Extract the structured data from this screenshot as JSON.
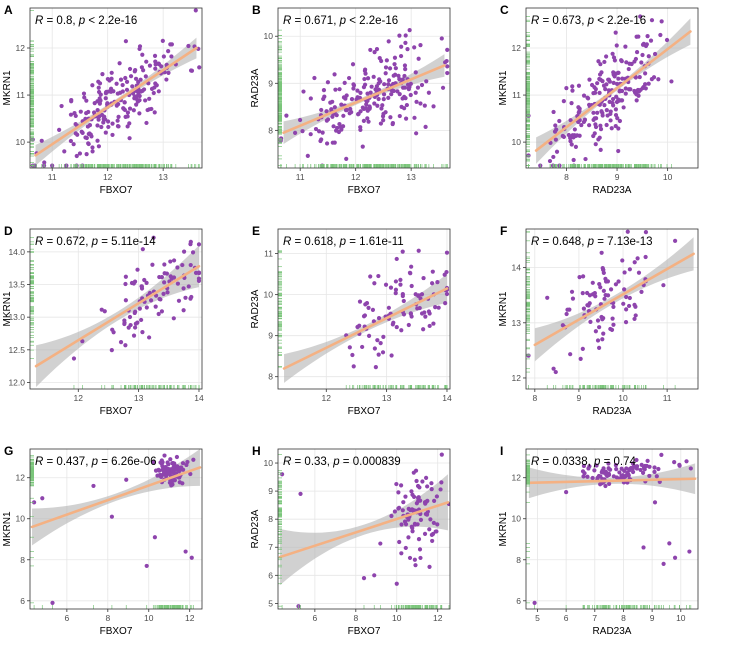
{
  "colors": {
    "point": "#8E44AD",
    "fit": "#F4B183",
    "band": "#B3B3B3",
    "rug": "#7BC67B",
    "grid": "#E6E6E6",
    "frame": "#333333"
  },
  "chart_data": [
    {
      "panel": "A",
      "type": "scatter",
      "xlabel": "FBXO7",
      "ylabel": "MKRN1",
      "stat_r": "0.8",
      "stat_p": "< 2.2e-16",
      "xlim": [
        10.6,
        13.7
      ],
      "ylim": [
        9.45,
        12.85
      ],
      "xticks": [
        11,
        12,
        13
      ],
      "yticks": [
        10,
        11,
        12
      ],
      "fit": {
        "x0": 10.7,
        "y0": 9.72,
        "x1": 13.6,
        "y1": 12.0,
        "band_end": 0.22,
        "band_mid": 0.05
      },
      "seed": 11,
      "n": 220,
      "spread": 0.42,
      "xdist": "normal",
      "xmean": 12.2,
      "xsd": 0.6
    },
    {
      "panel": "B",
      "type": "scatter",
      "xlabel": "FBXO7",
      "ylabel": "RAD23A",
      "stat_r": "0.671",
      "stat_p": "< 2.2e-16",
      "xlim": [
        10.6,
        13.7
      ],
      "ylim": [
        7.2,
        10.6
      ],
      "xticks": [
        11,
        12,
        13
      ],
      "yticks": [
        8,
        9,
        10
      ],
      "fit": {
        "x0": 10.7,
        "y0": 7.95,
        "x1": 13.6,
        "y1": 9.38,
        "band_end": 0.24,
        "band_mid": 0.05
      },
      "seed": 22,
      "n": 220,
      "spread": 0.42,
      "xdist": "normal",
      "xmean": 12.3,
      "xsd": 0.6
    },
    {
      "panel": "C",
      "type": "scatter",
      "xlabel": "RAD23A",
      "ylabel": "MKRN1",
      "stat_r": "0.673",
      "stat_p": "< 2.2e-16",
      "xlim": [
        7.2,
        10.6
      ],
      "ylim": [
        9.45,
        12.85
      ],
      "xticks": [
        8,
        9,
        10
      ],
      "yticks": [
        10,
        11,
        12
      ],
      "fit": {
        "x0": 7.4,
        "y0": 9.82,
        "x1": 10.45,
        "y1": 12.35,
        "band_end": 0.28,
        "band_mid": 0.05
      },
      "seed": 33,
      "n": 220,
      "spread": 0.44,
      "xdist": "normal",
      "xmean": 8.8,
      "xsd": 0.55
    },
    {
      "panel": "D",
      "type": "scatter",
      "xlabel": "FBXO7",
      "ylabel": "MKRN1",
      "stat_r": "0.672",
      "stat_p": "= 5.11e-14",
      "xlim": [
        11.2,
        14.05
      ],
      "ylim": [
        11.9,
        14.35
      ],
      "xticks": [
        12,
        13,
        14
      ],
      "yticks": [
        12.0,
        12.5,
        13.0,
        13.5,
        14.0
      ],
      "ytickfmt": 1,
      "fit": {
        "x0": 11.3,
        "y0": 12.25,
        "x1": 14.0,
        "y1": 13.78,
        "band_end": 0.32,
        "band_mid": 0.07
      },
      "seed": 44,
      "n": 95,
      "spread": 0.36,
      "xdist": "normal",
      "xmean": 13.2,
      "xsd": 0.5
    },
    {
      "panel": "E",
      "type": "scatter",
      "xlabel": "FBXO7",
      "ylabel": "RAD23A",
      "stat_r": "0.618",
      "stat_p": "= 1.61e-11",
      "xlim": [
        11.2,
        14.05
      ],
      "ylim": [
        7.7,
        11.6
      ],
      "xticks": [
        12,
        13,
        14
      ],
      "yticks": [
        8,
        9,
        10,
        11
      ],
      "fit": {
        "x0": 11.3,
        "y0": 8.2,
        "x1": 14.0,
        "y1": 10.15,
        "band_end": 0.35,
        "band_mid": 0.08
      },
      "seed": 55,
      "n": 95,
      "spread": 0.55,
      "xdist": "normal",
      "xmean": 13.2,
      "xsd": 0.5
    },
    {
      "panel": "F",
      "type": "scatter",
      "xlabel": "RAD23A",
      "ylabel": "MKRN1",
      "stat_r": "0.648",
      "stat_p": "= 7.13e-13",
      "xlim": [
        7.8,
        11.7
      ],
      "ylim": [
        11.8,
        14.7
      ],
      "xticks": [
        8,
        9,
        10,
        11
      ],
      "yticks": [
        12,
        13,
        14
      ],
      "fit": {
        "x0": 8.0,
        "y0": 12.6,
        "x1": 11.6,
        "y1": 14.25,
        "band_end": 0.3,
        "band_mid": 0.07
      },
      "seed": 66,
      "n": 95,
      "spread": 0.42,
      "xdist": "normal",
      "xmean": 9.6,
      "xsd": 0.55
    },
    {
      "panel": "G",
      "type": "scatter",
      "xlabel": "FBXO7",
      "ylabel": "MKRN1",
      "stat_r": "0.437",
      "stat_p": "= 6.26e-06",
      "xlim": [
        4.2,
        12.6
      ],
      "ylim": [
        5.6,
        13.4
      ],
      "xticks": [
        6,
        8,
        10,
        12
      ],
      "yticks": [
        6,
        8,
        10,
        12
      ],
      "fit": {
        "x0": 4.3,
        "y0": 9.6,
        "x1": 12.5,
        "y1": 12.5,
        "band_end": 0.9,
        "band_mid": 0.18
      },
      "seed": 77,
      "n": 90,
      "spread": 0.35,
      "xdist": "cluster",
      "xmean": 11.1,
      "xsd": 0.45,
      "ymean": 12.3,
      "ysd": 0.35,
      "outliers": [
        [
          4.4,
          10.8
        ],
        [
          4.8,
          11.0
        ],
        [
          5.3,
          5.9
        ],
        [
          8.2,
          10.1
        ],
        [
          9.9,
          7.7
        ],
        [
          11.8,
          8.4
        ],
        [
          12.1,
          8.1
        ],
        [
          10.3,
          9.1
        ],
        [
          7.3,
          11.6
        ],
        [
          8.9,
          11.9
        ]
      ]
    },
    {
      "panel": "H",
      "type": "scatter",
      "xlabel": "FBXO7",
      "ylabel": "RAD23A",
      "stat_r": "0.33",
      "stat_p": "= 0.000839",
      "xlim": [
        4.2,
        12.6
      ],
      "ylim": [
        4.8,
        10.5
      ],
      "xticks": [
        6,
        8,
        10,
        12
      ],
      "yticks": [
        5,
        6,
        7,
        8,
        9,
        10
      ],
      "fit": {
        "x0": 4.3,
        "y0": 6.65,
        "x1": 12.5,
        "y1": 8.6,
        "band_end": 1.0,
        "band_mid": 0.18
      },
      "seed": 88,
      "n": 90,
      "spread": 0.8,
      "xdist": "cluster",
      "xmean": 11.0,
      "xsd": 0.55,
      "ymean": 8.2,
      "ysd": 0.75,
      "outliers": [
        [
          4.4,
          9.6
        ],
        [
          5.3,
          8.9
        ],
        [
          5.2,
          4.9
        ],
        [
          8.4,
          5.9
        ],
        [
          8.9,
          6.0
        ],
        [
          10.0,
          5.7
        ],
        [
          12.2,
          10.3
        ],
        [
          11.6,
          6.3
        ]
      ]
    },
    {
      "panel": "I",
      "type": "scatter",
      "xlabel": "RAD23A",
      "ylabel": "MKRN1",
      "stat_r": "0.0338",
      "stat_p": "= 0.74",
      "xlim": [
        4.6,
        10.6
      ],
      "ylim": [
        5.6,
        13.4
      ],
      "xticks": [
        5,
        6,
        7,
        8,
        9,
        10
      ],
      "yticks": [
        6,
        8,
        10,
        12
      ],
      "fit": {
        "x0": 4.7,
        "y0": 11.75,
        "x1": 10.5,
        "y1": 11.95,
        "band_end": 0.75,
        "band_mid": 0.15
      },
      "seed": 99,
      "n": 90,
      "spread": 0.3,
      "xdist": "cluster",
      "xmean": 8.0,
      "xsd": 0.8,
      "ymean": 12.25,
      "ysd": 0.3,
      "outliers": [
        [
          4.9,
          5.9
        ],
        [
          6.0,
          11.3
        ],
        [
          7.5,
          11.7
        ],
        [
          8.7,
          8.6
        ],
        [
          9.6,
          8.8
        ],
        [
          9.8,
          8.1
        ],
        [
          10.3,
          8.4
        ],
        [
          9.4,
          7.8
        ],
        [
          9.1,
          10.8
        ],
        [
          10.2,
          12.8
        ]
      ]
    }
  ]
}
